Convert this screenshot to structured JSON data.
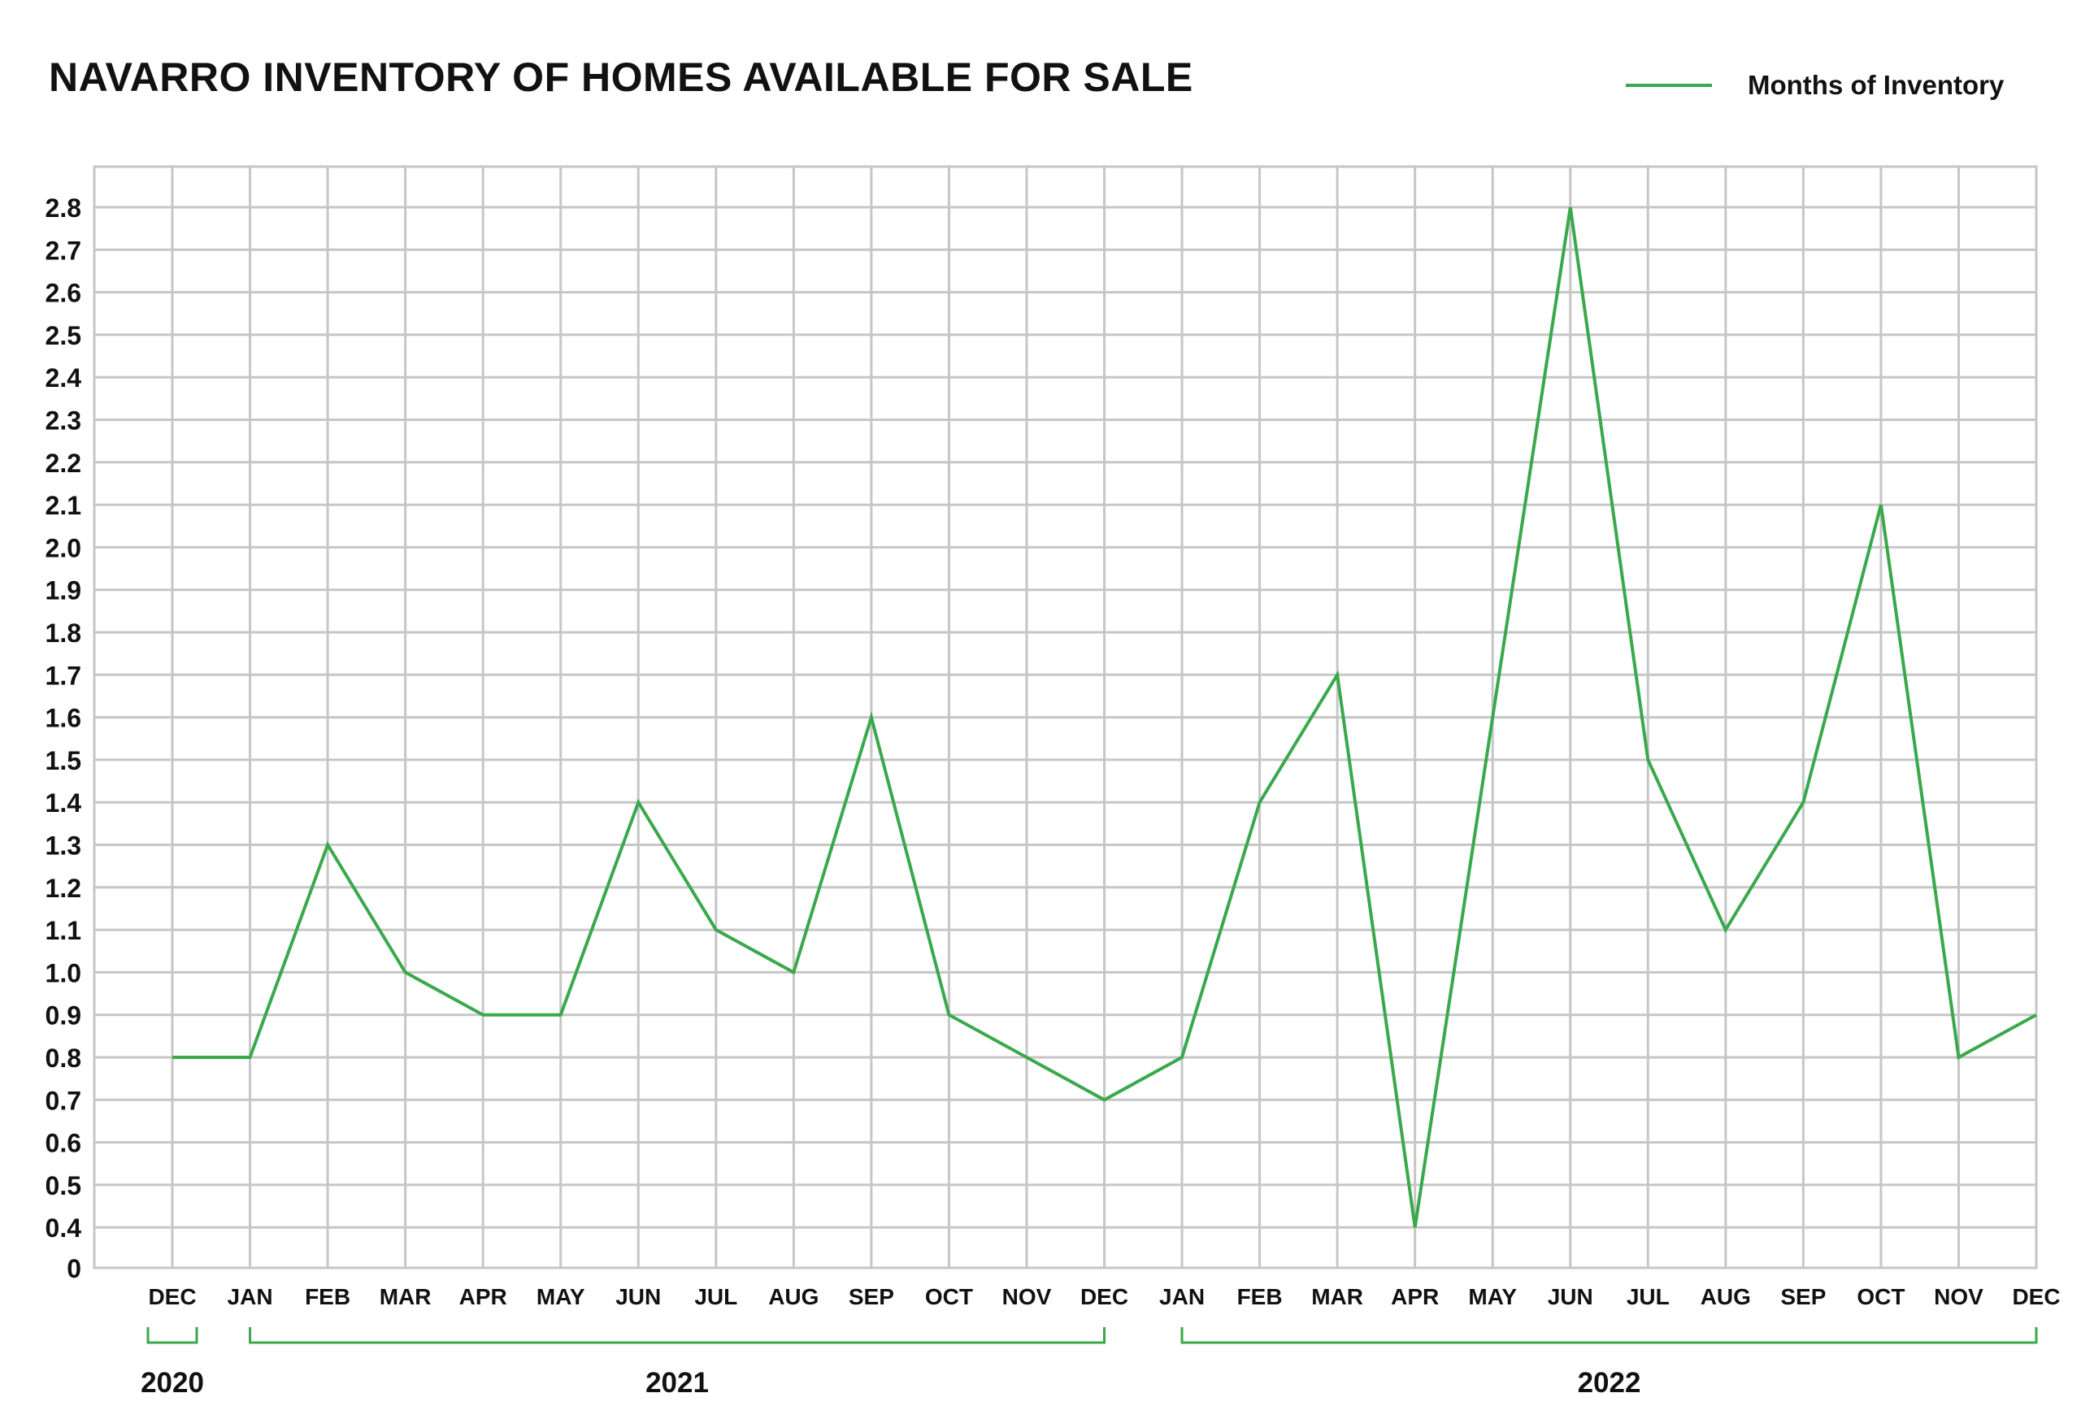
{
  "chart_data": {
    "type": "line",
    "title": "NAVARRO INVENTORY OF HOMES AVAILABLE FOR SALE",
    "xlabel": "",
    "ylabel": "",
    "categories": [
      "DEC",
      "JAN",
      "FEB",
      "MAR",
      "APR",
      "MAY",
      "JUN",
      "JUL",
      "AUG",
      "SEP",
      "OCT",
      "NOV",
      "DEC",
      "JAN",
      "FEB",
      "MAR",
      "APR",
      "MAY",
      "JUN",
      "JUL",
      "AUG",
      "SEP",
      "OCT",
      "NOV",
      "DEC"
    ],
    "year_groups": [
      {
        "label": "2020",
        "start": 0,
        "end": 0
      },
      {
        "label": "2021",
        "start": 1,
        "end": 12
      },
      {
        "label": "2022",
        "start": 13,
        "end": 24
      }
    ],
    "series": [
      {
        "name": "Months of Inventory",
        "color": "#3aa84c",
        "values": [
          0.8,
          0.8,
          1.3,
          1.0,
          0.9,
          0.9,
          1.4,
          1.1,
          1.0,
          1.6,
          0.9,
          0.8,
          0.7,
          0.8,
          1.4,
          1.7,
          0.4,
          1.6,
          2.8,
          1.5,
          1.1,
          1.4,
          2.1,
          0.8,
          0.9
        ]
      }
    ],
    "yticks": [
      "0",
      "0.4",
      "0.5",
      "0.6",
      "0.7",
      "0.8",
      "0.9",
      "1.0",
      "1.1",
      "1.2",
      "1.3",
      "1.4",
      "1.5",
      "1.6",
      "1.7",
      "1.8",
      "1.9",
      "2.0",
      "2.1",
      "2.2",
      "2.3",
      "2.4",
      "2.5",
      "2.6",
      "2.7",
      "2.8"
    ],
    "grid": true,
    "legend_position": "top-right",
    "grid_color": "#c6c6c6",
    "text_color": "#111111"
  }
}
